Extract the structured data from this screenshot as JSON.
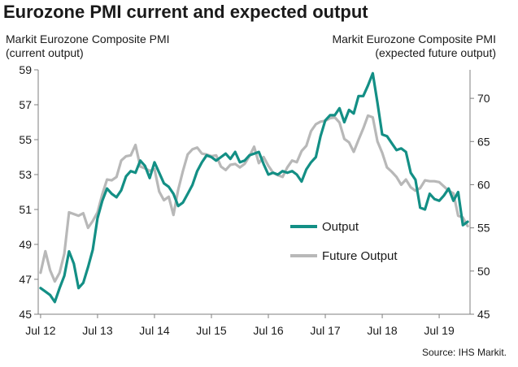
{
  "title": "Eurozone PMI current and expected output",
  "source": "Source: IHS Markit.",
  "colors": {
    "output": "#138f85",
    "future": "#b8b8b8",
    "axis": "#7f7f7f",
    "text": "#1a1a1a"
  },
  "chart_data": {
    "type": "line",
    "title": "Eurozone PMI current and expected output",
    "left_axis_label": "Markit Eurozone Composite PMI\n(current output)",
    "right_axis_label": "Markit Eurozone Composite PMI\n(expected future output)",
    "y_left": {
      "min": 45,
      "max": 59,
      "ticks": [
        45,
        47,
        49,
        51,
        53,
        55,
        57,
        59
      ]
    },
    "y_right": {
      "min": 45,
      "max": 73.3,
      "ticks": [
        45,
        50,
        55,
        60,
        65,
        70
      ]
    },
    "x_ticks": [
      "Jul 12",
      "Jul 13",
      "Jul 14",
      "Jul 15",
      "Jul 16",
      "Jul 17",
      "Jul 18",
      "Jul 19"
    ],
    "grid": false,
    "legend_position": "right-middle",
    "series": [
      {
        "name": "Output",
        "axis": "left",
        "start": "2012-07",
        "values": [
          46.5,
          46.3,
          46.1,
          45.7,
          46.5,
          47.2,
          48.6,
          47.9,
          46.5,
          46.8,
          47.7,
          48.7,
          50.5,
          51.5,
          52.2,
          51.9,
          51.7,
          52.1,
          52.9,
          53.2,
          53.1,
          53.8,
          53.5,
          52.8,
          53.7,
          53.1,
          52.5,
          52.3,
          51.9,
          51.2,
          51.4,
          51.9,
          52.4,
          53.2,
          53.7,
          54.1,
          54.0,
          53.8,
          54.0,
          54.2,
          53.9,
          54.3,
          53.7,
          53.8,
          54.1,
          54.2,
          54.3,
          53.6,
          53.0,
          53.1,
          53.0,
          53.2,
          53.1,
          53.2,
          53.0,
          52.6,
          53.3,
          53.7,
          54.0,
          55.2,
          56.1,
          56.4,
          56.4,
          56.8,
          56.0,
          56.7,
          56.5,
          57.5,
          57.5,
          58.1,
          58.8,
          57.1,
          55.3,
          55.2,
          54.8,
          54.4,
          54.5,
          54.3,
          53.1,
          52.7,
          51.1,
          51.0,
          51.9,
          51.6,
          51.5,
          51.8,
          52.2,
          51.5,
          52.0,
          50.1,
          50.3
        ],
        "color": "#138f85"
      },
      {
        "name": "Future Output",
        "axis": "right",
        "start": "2012-07",
        "values": [
          49.8,
          52.3,
          50.1,
          48.8,
          49.8,
          52.0,
          56.8,
          56.6,
          56.4,
          56.7,
          55.0,
          55.8,
          56.8,
          58.9,
          60.6,
          60.5,
          60.9,
          62.8,
          63.3,
          63.4,
          64.6,
          62.1,
          61.9,
          61.6,
          61.8,
          59.2,
          58.2,
          58.6,
          56.5,
          59.4,
          61.6,
          63.5,
          64.1,
          64.3,
          63.6,
          63.5,
          63.3,
          63.4,
          62.1,
          61.7,
          62.3,
          62.4,
          62.0,
          62.4,
          63.3,
          64.4,
          62.5,
          63.2,
          62.2,
          61.4,
          61.1,
          60.9,
          62.0,
          62.8,
          62.6,
          63.9,
          64.5,
          66.2,
          67.0,
          67.3,
          67.4,
          67.7,
          67.8,
          67.2,
          65.3,
          64.9,
          63.8,
          65.2,
          66.5,
          68.0,
          67.8,
          65.0,
          63.7,
          62.0,
          61.5,
          60.9,
          60.0,
          60.6,
          59.7,
          59.3,
          59.6,
          60.5,
          60.4,
          60.4,
          60.3,
          59.8,
          59.3,
          59.0,
          56.4,
          56.2,
          55.2
        ],
        "color": "#b8b8b8"
      }
    ]
  }
}
